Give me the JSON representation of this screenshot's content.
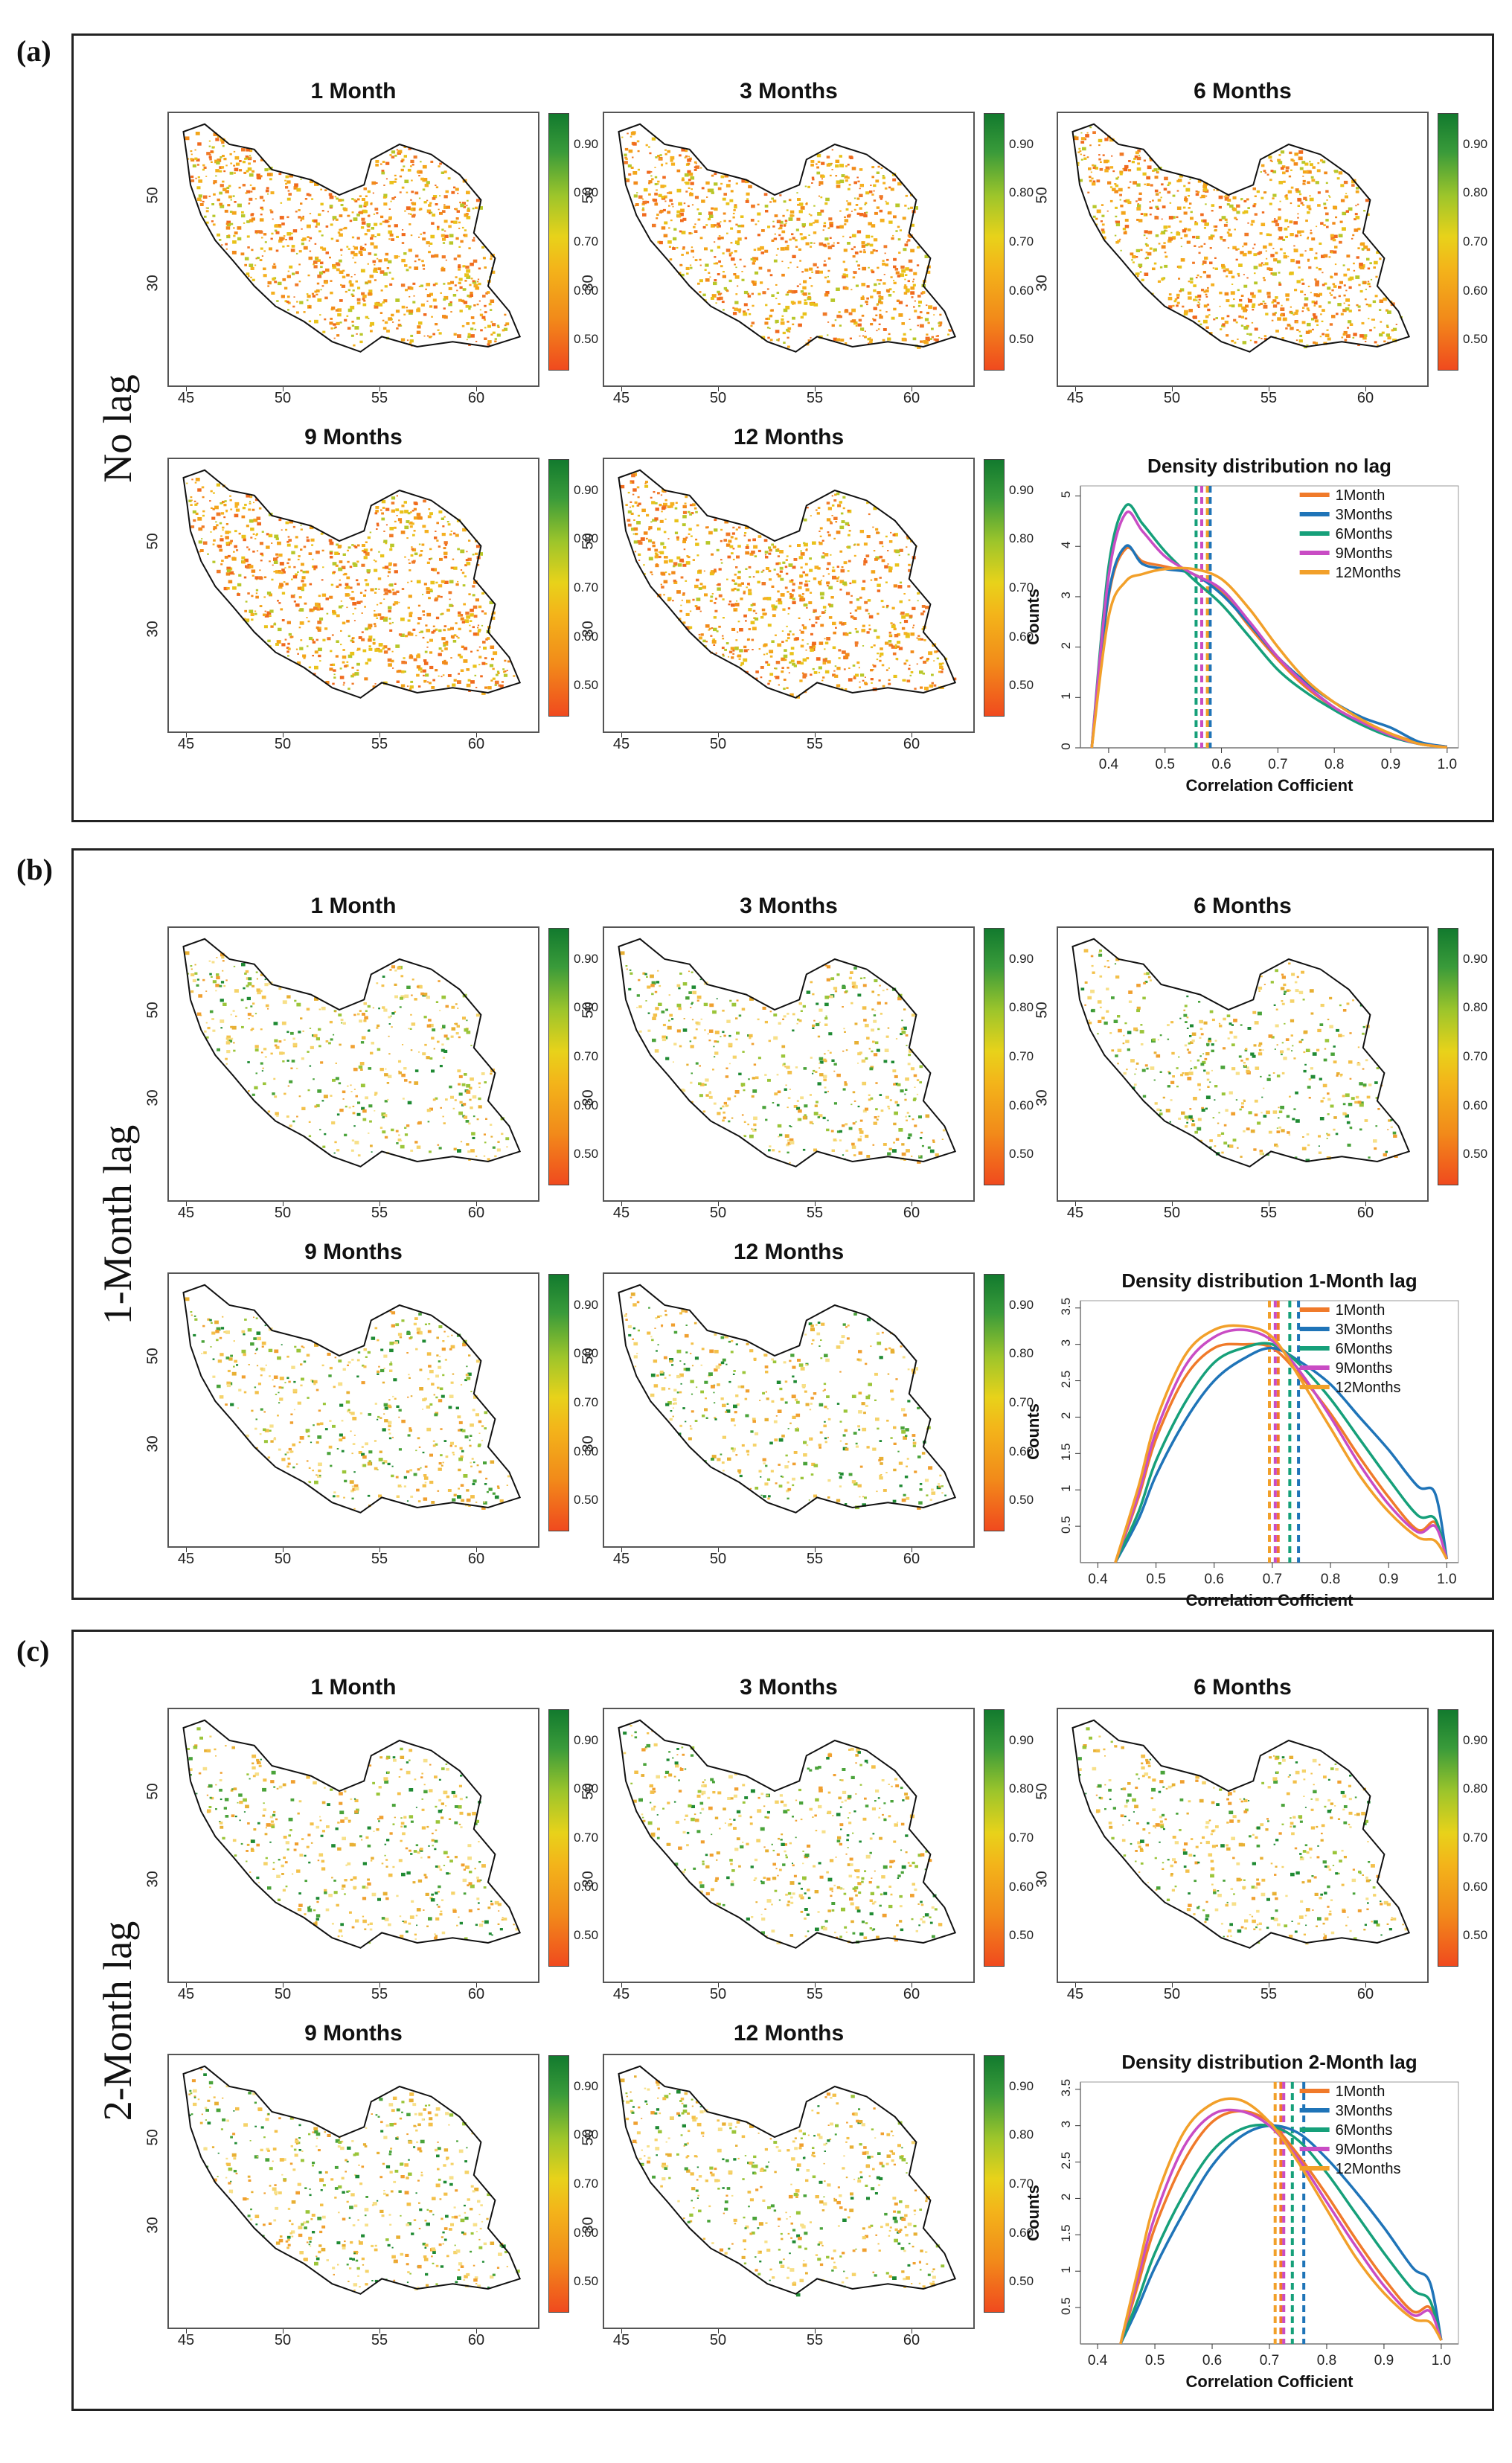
{
  "colorbar_ticks": [
    "0.50",
    "0.60",
    "0.70",
    "0.80",
    "0.90"
  ],
  "map_x_ticks": [
    "45",
    "50",
    "55",
    "60"
  ],
  "map_y_ticks": [
    "50",
    "30"
  ],
  "series_colors": {
    "1Month": "#f07a2a",
    "3Months": "#1f74b8",
    "6Months": "#16a07a",
    "9Months": "#c94cc4",
    "12Months": "#f2a02a"
  },
  "panels": [
    {
      "letter": "(a)",
      "row_label": "No lag",
      "map_titles": [
        "1 Month",
        "3 Months",
        "6 Months",
        "9 Months",
        "12 Months"
      ],
      "map_palette": "orange",
      "chart": {
        "title": "Density distribution  no lag",
        "xlabel": "Correlation Cofficient",
        "ylabel": "Counts"
      }
    },
    {
      "letter": "(b)",
      "row_label": "1-Month lag",
      "map_titles": [
        "1 Month",
        "3 Months",
        "6 Months",
        "9 Months",
        "12 Months"
      ],
      "map_palette": "mixed",
      "chart": {
        "title": "Density distribution 1-Month lag",
        "xlabel": "Correlation Cofficient",
        "ylabel": "Counts"
      }
    },
    {
      "letter": "(c)",
      "row_label": "2-Month lag",
      "map_titles": [
        "1 Month",
        "3 Months",
        "6 Months",
        "9 Months",
        "12 Months"
      ],
      "map_palette": "mixed",
      "chart": {
        "title": "Density distribution  2-Month lag",
        "xlabel": "Correlation Cofficient",
        "ylabel": "Counts"
      }
    }
  ],
  "chart_data": [
    {
      "type": "line",
      "title": "Density distribution  no lag",
      "xlabel": "Correlation Cofficient",
      "ylabel": "Counts",
      "xlim": [
        0.35,
        1.02
      ],
      "ylim": [
        0,
        5.2
      ],
      "xticks": [
        0.4,
        0.5,
        0.6,
        0.7,
        0.8,
        0.9,
        1.0
      ],
      "yticks": [
        0,
        1,
        2,
        3,
        4,
        5
      ],
      "x": [
        0.37,
        0.4,
        0.43,
        0.46,
        0.5,
        0.55,
        0.6,
        0.65,
        0.7,
        0.75,
        0.8,
        0.85,
        0.9,
        0.95,
        1.0
      ],
      "series": [
        {
          "name": "1Month",
          "values": [
            0,
            3.0,
            3.95,
            3.7,
            3.6,
            3.45,
            3.1,
            2.4,
            1.75,
            1.2,
            0.8,
            0.5,
            0.28,
            0.1,
            0.02
          ],
          "mean": 0.565
        },
        {
          "name": "3Months",
          "values": [
            0,
            3.05,
            4.0,
            3.65,
            3.55,
            3.45,
            3.05,
            2.45,
            1.8,
            1.3,
            0.9,
            0.6,
            0.4,
            0.12,
            0.02
          ],
          "mean": 0.58
        },
        {
          "name": "6Months",
          "values": [
            0,
            3.6,
            4.8,
            4.45,
            3.9,
            3.35,
            2.85,
            2.2,
            1.55,
            1.1,
            0.75,
            0.45,
            0.22,
            0.08,
            0.01
          ],
          "mean": 0.555
        },
        {
          "name": "9Months",
          "values": [
            0,
            3.4,
            4.65,
            4.3,
            3.8,
            3.45,
            3.15,
            2.5,
            1.8,
            1.25,
            0.8,
            0.5,
            0.25,
            0.08,
            0.01
          ],
          "mean": 0.565
        },
        {
          "name": "12Months",
          "values": [
            0,
            2.6,
            3.3,
            3.45,
            3.55,
            3.55,
            3.35,
            2.75,
            2.0,
            1.35,
            0.9,
            0.55,
            0.28,
            0.08,
            0.01
          ],
          "mean": 0.575
        }
      ]
    },
    {
      "type": "line",
      "title": "Density distribution 1-Month lag",
      "xlabel": "Correlation Cofficient",
      "ylabel": "Counts",
      "xlim": [
        0.37,
        1.02
      ],
      "ylim": [
        0,
        3.6
      ],
      "xticks": [
        0.4,
        0.5,
        0.6,
        0.7,
        0.8,
        0.9,
        1.0
      ],
      "yticks": [
        0.5,
        1.0,
        1.5,
        2.0,
        2.5,
        3.0,
        3.5
      ],
      "x": [
        0.43,
        0.47,
        0.5,
        0.55,
        0.6,
        0.65,
        0.7,
        0.75,
        0.8,
        0.85,
        0.9,
        0.95,
        0.98,
        1.0
      ],
      "series": [
        {
          "name": "1Month",
          "values": [
            0,
            0.9,
            1.7,
            2.55,
            2.95,
            3.0,
            2.95,
            2.55,
            2.05,
            1.45,
            0.9,
            0.45,
            0.55,
            0.05
          ],
          "mean": 0.71
        },
        {
          "name": "3Months",
          "values": [
            0,
            0.6,
            1.2,
            1.95,
            2.5,
            2.8,
            2.95,
            2.75,
            2.45,
            2.0,
            1.55,
            1.05,
            0.95,
            0.05
          ],
          "mean": 0.745
        },
        {
          "name": "6Months",
          "values": [
            0,
            0.7,
            1.4,
            2.2,
            2.75,
            2.95,
            3.0,
            2.7,
            2.25,
            1.7,
            1.15,
            0.65,
            0.6,
            0.05
          ],
          "mean": 0.73
        },
        {
          "name": "9Months",
          "values": [
            0,
            0.95,
            1.8,
            2.7,
            3.1,
            3.2,
            3.05,
            2.6,
            2.0,
            1.35,
            0.8,
            0.42,
            0.5,
            0.05
          ],
          "mean": 0.705
        },
        {
          "name": "12Months",
          "values": [
            0,
            1.05,
            1.95,
            2.85,
            3.2,
            3.25,
            3.1,
            2.5,
            1.85,
            1.2,
            0.7,
            0.35,
            0.3,
            0.05
          ],
          "mean": 0.695
        }
      ]
    },
    {
      "type": "line",
      "title": "Density distribution  2-Month lag",
      "xlabel": "Correlation Cofficient",
      "ylabel": "Counts",
      "xlim": [
        0.37,
        1.03
      ],
      "ylim": [
        0,
        3.6
      ],
      "xticks": [
        0.4,
        0.5,
        0.6,
        0.7,
        0.8,
        0.9,
        1.0
      ],
      "yticks": [
        0.5,
        1.0,
        1.5,
        2.0,
        2.5,
        3.0,
        3.5
      ],
      "x": [
        0.44,
        0.47,
        0.5,
        0.55,
        0.6,
        0.65,
        0.7,
        0.75,
        0.8,
        0.85,
        0.9,
        0.95,
        0.98,
        1.0
      ],
      "series": [
        {
          "name": "1Month",
          "values": [
            0,
            0.8,
            1.6,
            2.5,
            3.05,
            3.2,
            3.05,
            2.6,
            2.05,
            1.45,
            0.9,
            0.45,
            0.5,
            0.05
          ],
          "mean": 0.72
        },
        {
          "name": "3Months",
          "values": [
            0,
            0.5,
            1.05,
            1.8,
            2.45,
            2.85,
            3.0,
            2.9,
            2.55,
            2.1,
            1.6,
            1.05,
            0.85,
            0.05
          ],
          "mean": 0.76
        },
        {
          "name": "6Months",
          "values": [
            0,
            0.6,
            1.25,
            2.05,
            2.65,
            2.95,
            3.0,
            2.8,
            2.35,
            1.8,
            1.25,
            0.75,
            0.6,
            0.05
          ],
          "mean": 0.74
        },
        {
          "name": "9Months",
          "values": [
            0,
            0.9,
            1.75,
            2.7,
            3.15,
            3.2,
            3.0,
            2.55,
            1.95,
            1.35,
            0.8,
            0.4,
            0.45,
            0.05
          ],
          "mean": 0.725
        },
        {
          "name": "12Months",
          "values": [
            0,
            1.0,
            1.95,
            2.9,
            3.3,
            3.35,
            3.05,
            2.5,
            1.85,
            1.2,
            0.7,
            0.35,
            0.3,
            0.05
          ],
          "mean": 0.71
        }
      ]
    }
  ]
}
